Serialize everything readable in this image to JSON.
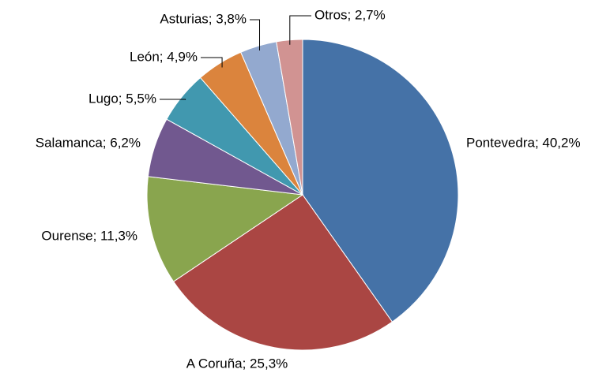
{
  "chart_data": {
    "type": "pie",
    "values": [
      40.2,
      25.3,
      11.3,
      6.2,
      5.5,
      4.9,
      3.8,
      2.7
    ],
    "value_labels": [
      "Pontevedra; 40,2%",
      "A Coruña; 25,3%",
      "Ourense; 11,3%",
      "Salamanca; 6,2%",
      "Lugo; 5,5%",
      "León; 4,9%",
      "Asturias; 3,8%",
      "Otros; 2,7%"
    ],
    "colors": [
      "#4572a7",
      "#aa4643",
      "#89a54e",
      "#71588f",
      "#4198af",
      "#db843d",
      "#93a9cf",
      "#d19392"
    ]
  }
}
